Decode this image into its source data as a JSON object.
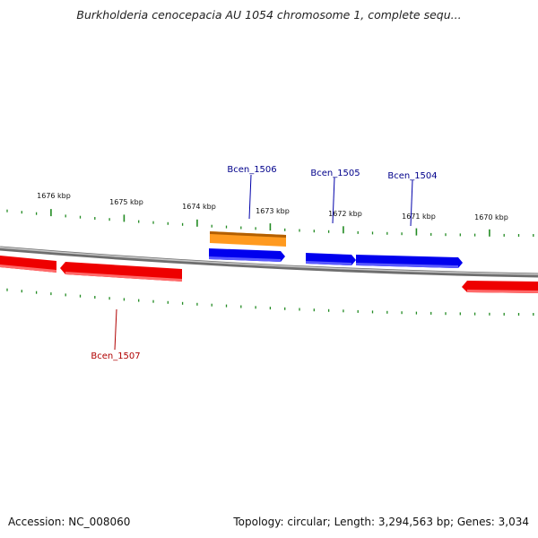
{
  "title": "Burkholderia cenocepacia AU 1054 chromosome 1, complete sequ...",
  "footer": {
    "accession": "Accession: NC_008060",
    "summary": "Topology: circular; Length: 3,294,563 bp; Genes: 3,034"
  },
  "colors": {
    "forward_strand": "#0000ee",
    "reverse_strand": "#ee0000",
    "highlight": "#ff8c00",
    "backbone": "#888888",
    "ticks": "#228b22",
    "forward_label": "#00008b",
    "reverse_label": "#b00000"
  },
  "scale": {
    "labels": [
      "1676 kbp",
      "1675 kbp",
      "1674 kbp",
      "1673 kbp",
      "1672 kbp",
      "1671 kbp",
      "1670 kbp"
    ]
  },
  "genes": [
    {
      "label": "Bcen_1506",
      "strand": "forward",
      "lane": "upper",
      "role": "highlight"
    },
    {
      "label": "Bcen_1505",
      "strand": "forward",
      "lane": "inner"
    },
    {
      "label": "Bcen_1504",
      "strand": "forward",
      "lane": "inner"
    },
    {
      "label": "Bcen_1507",
      "strand": "reverse",
      "lane": "outer"
    }
  ]
}
